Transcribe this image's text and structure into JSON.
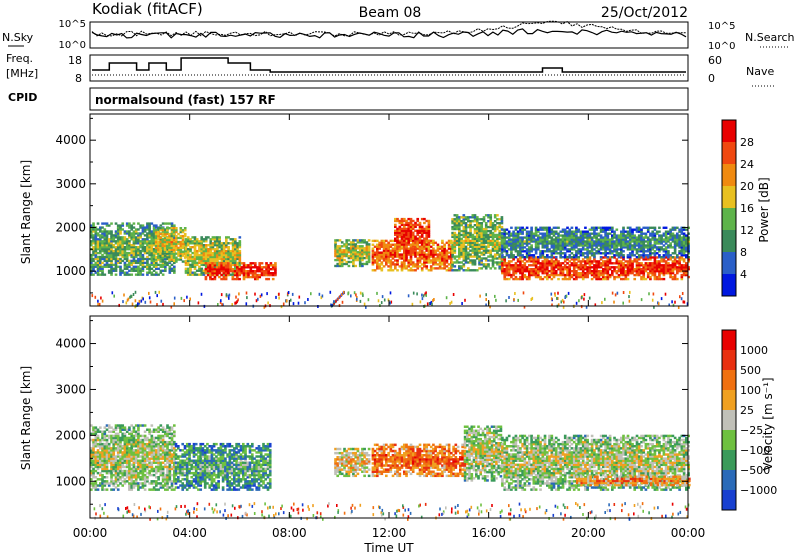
{
  "header": {
    "station": "Kodiak (fitACF)",
    "beam": "Beam 08",
    "date": "25/Oct/2012"
  },
  "noise_panel": {
    "left_label": "N.Sky",
    "right_label": "N.Search",
    "left_ticks": [
      "10^5",
      "10^0"
    ],
    "right_ticks": [
      "10^5",
      "10^0"
    ]
  },
  "freq_panel": {
    "left_label_line1": "Freq.",
    "left_label_line2": "[MHz]",
    "right_label": "Nave",
    "left_ticks": [
      "18",
      "8"
    ],
    "right_ticks": [
      "60",
      "0"
    ]
  },
  "cpid": {
    "label": "CPID",
    "text": "normalsound (fast) 157 RF"
  },
  "chart_data": [
    {
      "type": "heatmap",
      "title": "",
      "quantity": "Power",
      "xlabel": "",
      "ylabel": "Slant Range [km]",
      "x_ticks": [
        "00:00",
        "04:00",
        "08:00",
        "12:00",
        "16:00",
        "20:00",
        "00:00"
      ],
      "y_ticks": [
        1000,
        2000,
        3000,
        4000
      ],
      "xlim_hours": [
        0,
        24
      ],
      "ylim_km": [
        200,
        4600
      ],
      "colorbar": {
        "label": "Power [dB]",
        "ticks": [
          "4",
          "8",
          "12",
          "16",
          "20",
          "24",
          "28"
        ],
        "colors": [
          "#0018e0",
          "#2a5fc8",
          "#3a8a5a",
          "#5eb34a",
          "#e8c020",
          "#f08a10",
          "#f04810",
          "#e80000"
        ]
      },
      "echo_regions": [
        {
          "start": 0.0,
          "end": 3.4,
          "low": 900,
          "high": 2100,
          "level": 0.45
        },
        {
          "start": 2.6,
          "end": 3.8,
          "low": 1200,
          "high": 2000,
          "level": 0.6
        },
        {
          "start": 3.8,
          "end": 6.0,
          "low": 900,
          "high": 1800,
          "level": 0.55
        },
        {
          "start": 4.6,
          "end": 7.4,
          "low": 800,
          "high": 1200,
          "level": 0.92
        },
        {
          "start": 9.8,
          "end": 11.2,
          "low": 1100,
          "high": 1700,
          "level": 0.55
        },
        {
          "start": 11.3,
          "end": 14.5,
          "low": 1000,
          "high": 1700,
          "level": 0.82
        },
        {
          "start": 12.2,
          "end": 13.6,
          "low": 1500,
          "high": 2200,
          "level": 0.9
        },
        {
          "start": 14.5,
          "end": 16.5,
          "low": 1000,
          "high": 2300,
          "level": 0.5
        },
        {
          "start": 16.5,
          "end": 24.0,
          "low": 800,
          "high": 1300,
          "level": 0.9
        },
        {
          "start": 16.5,
          "end": 24.0,
          "low": 1300,
          "high": 2000,
          "level": 0.35
        }
      ]
    },
    {
      "type": "heatmap",
      "title": "",
      "quantity": "Velocity",
      "xlabel": "Time UT",
      "ylabel": "Slant Range [km]",
      "x_ticks": [
        "00:00",
        "04:00",
        "08:00",
        "12:00",
        "16:00",
        "20:00",
        "00:00"
      ],
      "y_ticks": [
        1000,
        2000,
        3000,
        4000
      ],
      "xlim_hours": [
        0,
        24
      ],
      "ylim_km": [
        200,
        4600
      ],
      "colorbar": {
        "label": "Velocity [m s⁻¹]",
        "ticks": [
          "1000",
          "500",
          "100",
          "25",
          "−25",
          "−100",
          "−500",
          "−1000"
        ],
        "colors": [
          "#1840d0",
          "#2a6ab8",
          "#3a9a5a",
          "#6ec040",
          "#c0c0b8",
          "#f0a020",
          "#f07010",
          "#e83010",
          "#e80000"
        ]
      },
      "echo_regions": [
        {
          "start": 0.0,
          "end": 3.4,
          "low": 800,
          "high": 2200,
          "level": 0.5
        },
        {
          "start": 3.4,
          "end": 7.2,
          "low": 800,
          "high": 1800,
          "level": 0.35
        },
        {
          "start": 9.8,
          "end": 11.2,
          "low": 1100,
          "high": 1700,
          "level": 0.6
        },
        {
          "start": 11.3,
          "end": 15.0,
          "low": 1100,
          "high": 1800,
          "level": 0.78
        },
        {
          "start": 15.0,
          "end": 16.5,
          "low": 1000,
          "high": 2200,
          "level": 0.5
        },
        {
          "start": 16.5,
          "end": 24.0,
          "low": 800,
          "high": 2000,
          "level": 0.5
        },
        {
          "start": 19.5,
          "end": 24.0,
          "low": 900,
          "high": 1100,
          "level": 0.72
        }
      ]
    }
  ]
}
